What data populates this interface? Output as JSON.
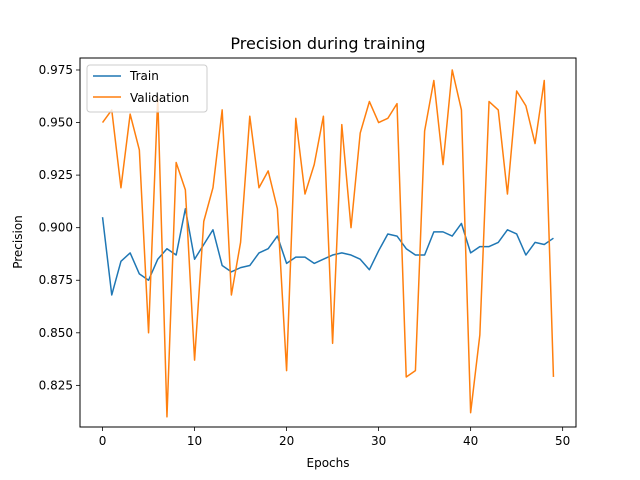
{
  "chart_data": {
    "type": "line",
    "title": "Precision during training",
    "xlabel": "Epochs",
    "ylabel": "Precision",
    "xlim": [
      -2.45,
      51.45
    ],
    "ylim": [
      0.8052,
      0.9807
    ],
    "xticks": [
      0,
      10,
      20,
      30,
      40,
      50
    ],
    "yticks": [
      0.825,
      0.85,
      0.875,
      0.9,
      0.925,
      0.95,
      0.975
    ],
    "ytick_labels": [
      "0.825",
      "0.850",
      "0.875",
      "0.900",
      "0.925",
      "0.950",
      "0.975"
    ],
    "grid": false,
    "legend_position": "upper-left",
    "x": [
      0,
      1,
      2,
      3,
      4,
      5,
      6,
      7,
      8,
      9,
      10,
      11,
      12,
      13,
      14,
      15,
      16,
      17,
      18,
      19,
      20,
      21,
      22,
      23,
      24,
      25,
      26,
      27,
      28,
      29,
      30,
      31,
      32,
      33,
      34,
      35,
      36,
      37,
      38,
      39,
      40,
      41,
      42,
      43,
      44,
      45,
      46,
      47,
      48,
      49
    ],
    "series": [
      {
        "name": "Train",
        "color": "#1f77b4",
        "values": [
          0.905,
          0.868,
          0.884,
          0.888,
          0.878,
          0.875,
          0.885,
          0.89,
          0.887,
          0.909,
          0.885,
          0.892,
          0.899,
          0.882,
          0.879,
          0.881,
          0.882,
          0.888,
          0.89,
          0.896,
          0.883,
          0.886,
          0.886,
          0.883,
          0.885,
          0.887,
          0.888,
          0.887,
          0.885,
          0.88,
          0.889,
          0.897,
          0.896,
          0.89,
          0.887,
          0.887,
          0.898,
          0.898,
          0.896,
          0.902,
          0.888,
          0.891,
          0.891,
          0.893,
          0.899,
          0.897,
          0.887,
          0.893,
          0.892,
          0.895
        ]
      },
      {
        "name": "Validation",
        "color": "#ff7f0e",
        "values": [
          0.95,
          0.956,
          0.919,
          0.954,
          0.937,
          0.85,
          0.962,
          0.81,
          0.931,
          0.918,
          0.837,
          0.903,
          0.919,
          0.956,
          0.868,
          0.893,
          0.953,
          0.919,
          0.927,
          0.909,
          0.832,
          0.952,
          0.916,
          0.93,
          0.953,
          0.845,
          0.949,
          0.9,
          0.945,
          0.96,
          0.95,
          0.952,
          0.959,
          0.829,
          0.832,
          0.946,
          0.97,
          0.93,
          0.975,
          0.956,
          0.812,
          0.849,
          0.96,
          0.956,
          0.916,
          0.965,
          0.958,
          0.94,
          0.97,
          0.829
        ]
      }
    ]
  }
}
